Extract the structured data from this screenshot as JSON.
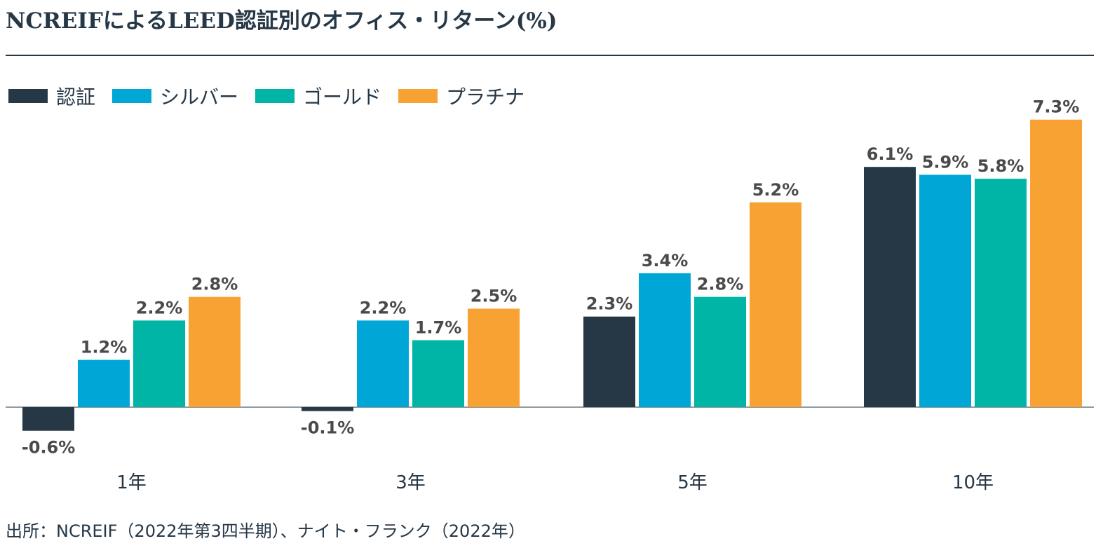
{
  "title": "NCREIFによるLEED認証別のオフィス・リターン(%)",
  "source": "出所：NCREIF（2022年第3四半期）、ナイト・フランク（2022年）",
  "chart_data": {
    "type": "bar",
    "title": "NCREIFによるLEED認証別のオフィス・リターン(%)",
    "xlabel": "",
    "ylabel": "",
    "grid": false,
    "legend_position": "top-left",
    "categories": [
      "1年",
      "3年",
      "5年",
      "10年"
    ],
    "series": [
      {
        "name": "認証",
        "color": "#263746",
        "values": [
          -0.6,
          -0.1,
          2.3,
          6.1
        ],
        "labels": [
          "-0.6%",
          "-0.1%",
          "2.3%",
          "6.1%"
        ]
      },
      {
        "name": "シルバー",
        "color": "#00A6D6",
        "values": [
          1.2,
          2.2,
          3.4,
          5.9
        ],
        "labels": [
          "1.2%",
          "2.2%",
          "3.4%",
          "5.9%"
        ]
      },
      {
        "name": "ゴールド",
        "color": "#00B5A5",
        "values": [
          2.2,
          1.7,
          2.8,
          5.8
        ],
        "labels": [
          "2.2%",
          "1.7%",
          "2.8%",
          "5.8%"
        ]
      },
      {
        "name": "プラチナ",
        "color": "#F7A233",
        "values": [
          2.8,
          2.5,
          5.2,
          7.3
        ],
        "labels": [
          "2.8%",
          "2.5%",
          "5.2%",
          "7.3%"
        ]
      }
    ]
  }
}
